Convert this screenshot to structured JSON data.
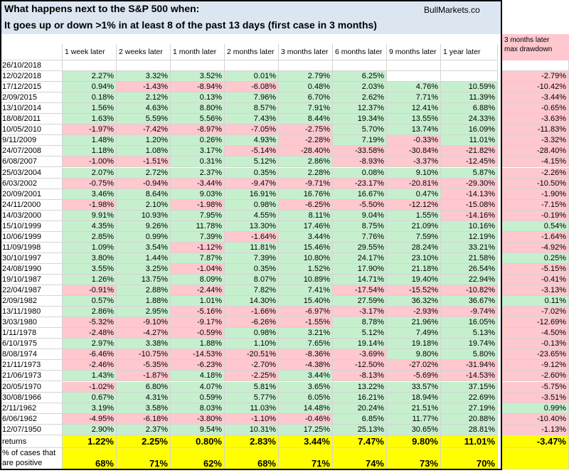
{
  "header": {
    "title_line1": "What happens next to the S&P 500 when:",
    "title_line2": "It goes up or down >1% in at least 8 of the past 13 days (first case in 3 months)",
    "site": "BullMarkets.co"
  },
  "columns": [
    "1 week later",
    "2 weeks later",
    "1 month later",
    "2 months later",
    "3 months later",
    "6 months later",
    "9 months later",
    "1 year later"
  ],
  "drawdown_header": [
    "3 months later",
    "max drawdown"
  ],
  "rows": [
    {
      "date": "26/10/2018",
      "values": []
    },
    {
      "date": "12/02/2018",
      "values": [
        "2.27%",
        "3.32%",
        "3.52%",
        "0.01%",
        "2.79%",
        "6.25%",
        null,
        null,
        "-2.79%"
      ]
    },
    {
      "date": "17/12/2015",
      "values": [
        "0.94%",
        "-1.43%",
        "-8.94%",
        "-6.08%",
        "0.48%",
        "2.03%",
        "4.76%",
        "10.59%",
        "-10.42%"
      ]
    },
    {
      "date": "2/09/2015",
      "values": [
        "0.18%",
        "2.12%",
        "0.13%",
        "7.96%",
        "6.70%",
        "2.62%",
        "7.71%",
        "11.39%",
        "-3.44%"
      ]
    },
    {
      "date": "13/10/2014",
      "values": [
        "1.56%",
        "4.63%",
        "8.80%",
        "8.57%",
        "7.91%",
        "12.37%",
        "12.41%",
        "6.88%",
        "-0.65%"
      ]
    },
    {
      "date": "18/08/2011",
      "values": [
        "1.63%",
        "5.59%",
        "5.56%",
        "7.43%",
        "8.44%",
        "19.34%",
        "13.55%",
        "24.33%",
        "-3.63%"
      ]
    },
    {
      "date": "10/05/2010",
      "values": [
        "-1.97%",
        "-7.42%",
        "-8.97%",
        "-7.05%",
        "-2.75%",
        "5.70%",
        "13.74%",
        "16.09%",
        "-11.83%"
      ]
    },
    {
      "date": "9/11/2009",
      "values": [
        "1.48%",
        "1.20%",
        "0.26%",
        "4.93%",
        "-2.28%",
        "7.19%",
        "-0.33%",
        "11.01%",
        "-3.32%"
      ]
    },
    {
      "date": "24/07/2008",
      "values": [
        "1.18%",
        "1.08%",
        "3.17%",
        "-5.14%",
        "-28.40%",
        "-33.58%",
        "-30.84%",
        "-21.82%",
        "-28.40%"
      ]
    },
    {
      "date": "6/08/2007",
      "values": [
        "-1.00%",
        "-1.51%",
        "0.31%",
        "5.12%",
        "2.86%",
        "-8.93%",
        "-3.37%",
        "-12.45%",
        "-4.15%"
      ]
    },
    {
      "date": "25/03/2004",
      "values": [
        "2.07%",
        "2.72%",
        "2.37%",
        "0.35%",
        "2.28%",
        "0.08%",
        "9.10%",
        "5.87%",
        "-2.26%"
      ]
    },
    {
      "date": "6/03/2002",
      "values": [
        "-0.75%",
        "-0.94%",
        "-3.44%",
        "-9.47%",
        "-9.71%",
        "-23.17%",
        "-20.81%",
        "-29.30%",
        "-10.50%"
      ]
    },
    {
      "date": "20/09/2001",
      "values": [
        "3.46%",
        "8.64%",
        "9.03%",
        "16.91%",
        "16.76%",
        "16.67%",
        "0.47%",
        "-14.13%",
        "-1.90%"
      ]
    },
    {
      "date": "24/11/2000",
      "values": [
        "-1.98%",
        "2.10%",
        "-1.98%",
        "0.98%",
        "-6.25%",
        "-5.50%",
        "-12.12%",
        "-15.08%",
        "-7.15%"
      ]
    },
    {
      "date": "14/03/2000",
      "values": [
        "9.91%",
        "10.93%",
        "7.95%",
        "4.55%",
        "8.11%",
        "9.04%",
        "1.55%",
        "-14.16%",
        "-0.19%"
      ]
    },
    {
      "date": "15/10/1999",
      "values": [
        "4.35%",
        "9.26%",
        "11.78%",
        "13.30%",
        "17.46%",
        "8.75%",
        "21.09%",
        "10.16%",
        "0.54%"
      ]
    },
    {
      "date": "10/06/1999",
      "values": [
        "2.85%",
        "0.99%",
        "7.39%",
        "-1.64%",
        "3.44%",
        "7.76%",
        "7.59%",
        "12.19%",
        "-1.64%"
      ]
    },
    {
      "date": "11/09/1998",
      "values": [
        "1.09%",
        "3.54%",
        "-1.12%",
        "11.81%",
        "15.46%",
        "29.55%",
        "28.24%",
        "33.21%",
        "-4.92%"
      ]
    },
    {
      "date": "30/10/1997",
      "values": [
        "3.80%",
        "1.44%",
        "7.87%",
        "7.39%",
        "10.80%",
        "24.17%",
        "23.10%",
        "21.58%",
        "0.25%"
      ]
    },
    {
      "date": "24/08/1990",
      "values": [
        "3.55%",
        "3.25%",
        "-1.04%",
        "0.35%",
        "1.52%",
        "17.90%",
        "21.18%",
        "26.54%",
        "-5.15%"
      ]
    },
    {
      "date": "19/10/1987",
      "values": [
        "1.26%",
        "13.75%",
        "8.09%",
        "8.07%",
        "10.89%",
        "14.71%",
        "19.40%",
        "22.94%",
        "-0.41%"
      ]
    },
    {
      "date": "22/04/1987",
      "values": [
        "-0.91%",
        "2.88%",
        "-2.44%",
        "7.82%",
        "7.41%",
        "-17.54%",
        "-15.52%",
        "-10.82%",
        "-3.13%"
      ]
    },
    {
      "date": "2/09/1982",
      "values": [
        "0.57%",
        "1.88%",
        "1.01%",
        "14.30%",
        "15.40%",
        "27.59%",
        "36.32%",
        "36.67%",
        "0.11%"
      ]
    },
    {
      "date": "13/11/1980",
      "values": [
        "2.86%",
        "2.95%",
        "-5.16%",
        "-1.66%",
        "-6.97%",
        "-3.17%",
        "-2.93%",
        "-9.74%",
        "-7.02%"
      ]
    },
    {
      "date": "3/03/1980",
      "values": [
        "-5.32%",
        "-9.10%",
        "-9.17%",
        "-6.26%",
        "-1.55%",
        "8.78%",
        "21.96%",
        "16.05%",
        "-12.69%"
      ]
    },
    {
      "date": "1/11/1978",
      "values": [
        "-2.48%",
        "-4.27%",
        "-0.59%",
        "0.98%",
        "3.21%",
        "5.12%",
        "7.49%",
        "5.13%",
        "-4.50%"
      ]
    },
    {
      "date": "6/10/1975",
      "values": [
        "2.97%",
        "3.38%",
        "1.88%",
        "1.10%",
        "7.65%",
        "19.14%",
        "19.18%",
        "19.74%",
        "-0.13%"
      ]
    },
    {
      "date": "8/08/1974",
      "values": [
        "-6.46%",
        "-10.75%",
        "-14.53%",
        "-20.51%",
        "-8.36%",
        "-3.69%",
        "9.80%",
        "5.80%",
        "-23.65%"
      ]
    },
    {
      "date": "21/11/1973",
      "values": [
        "-2.46%",
        "-5.35%",
        "-6.23%",
        "-2.70%",
        "-4.38%",
        "-12.50%",
        "-27.02%",
        "-31.94%",
        "-9.12%"
      ]
    },
    {
      "date": "21/06/1973",
      "values": [
        "1.43%",
        "-1.87%",
        "4.18%",
        "-2.25%",
        "3.44%",
        "-8.13%",
        "-5.69%",
        "-14.53%",
        "-2.60%"
      ]
    },
    {
      "date": "20/05/1970",
      "values": [
        "-1.02%",
        "6.80%",
        "4.07%",
        "5.81%",
        "3.65%",
        "13.22%",
        "33.57%",
        "37.15%",
        "-5.75%"
      ]
    },
    {
      "date": "30/08/1966",
      "values": [
        "0.67%",
        "4.31%",
        "0.59%",
        "5.77%",
        "6.05%",
        "16.21%",
        "18.94%",
        "22.69%",
        "-3.51%"
      ]
    },
    {
      "date": "2/11/1962",
      "values": [
        "3.19%",
        "3.58%",
        "8.03%",
        "11.03%",
        "14.48%",
        "20.24%",
        "21.51%",
        "27.19%",
        "0.99%"
      ]
    },
    {
      "date": "6/06/1962",
      "values": [
        "-4.95%",
        "-6.18%",
        "-3.80%",
        "-1.10%",
        "-0.46%",
        "6.85%",
        "11.77%",
        "20.88%",
        "-10.40%"
      ]
    },
    {
      "date": "12/07/1950",
      "values": [
        "2.90%",
        "2.37%",
        "9.54%",
        "10.31%",
        "17.25%",
        "25.13%",
        "30.65%",
        "28.81%",
        "-1.13%"
      ]
    }
  ],
  "returns": {
    "label": "returns",
    "values": [
      "1.22%",
      "2.25%",
      "0.80%",
      "2.83%",
      "3.44%",
      "7.47%",
      "9.80%",
      "11.01%",
      "-3.47%"
    ]
  },
  "positive": {
    "label": "% of cases that are positive",
    "values": [
      "68%",
      "71%",
      "62%",
      "68%",
      "71%",
      "74%",
      "73%",
      "70%"
    ]
  }
}
